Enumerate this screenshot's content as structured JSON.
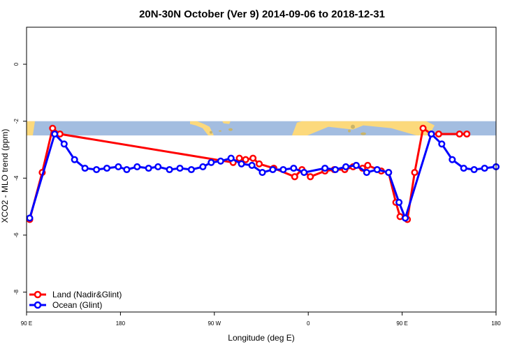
{
  "chart_data": {
    "type": "line",
    "title": "20N-30N October (Ver 9)   2014-09-06 to 2018-12-31",
    "xlabel": "Longitude (deg E)",
    "ylabel": "XCO2 - MLO trend (ppm)",
    "xlim": [
      90,
      540
    ],
    "ylim": [
      -8.7,
      1.3
    ],
    "x_ticks": [
      {
        "value": 90,
        "label": "90 E"
      },
      {
        "value": 180,
        "label": "180"
      },
      {
        "value": 270,
        "label": "90 W"
      },
      {
        "value": 360,
        "label": "0"
      },
      {
        "value": 450,
        "label": "90 E"
      },
      {
        "value": 540,
        "label": "180"
      }
    ],
    "y_ticks": [
      {
        "value": 0,
        "label": "0"
      },
      {
        "value": -2,
        "label": "-2"
      },
      {
        "value": -4,
        "label": "-4"
      },
      {
        "value": -6,
        "label": "-6"
      },
      {
        "value": -8,
        "label": "-8"
      }
    ],
    "grid": false,
    "legend_position": "bottom-left",
    "map_band": {
      "y_top": -2.0,
      "y_bottom": -2.5,
      "ocean_color": "#a3bde0",
      "land_color": "#fcd97c"
    },
    "series": [
      {
        "name": "Land (Nadir&Glint)",
        "color": "#ff0000",
        "x": [
          93,
          105,
          115,
          122,
          288,
          294,
          300,
          307,
          313,
          327,
          347,
          354,
          362,
          376,
          385,
          395,
          403,
          412,
          417,
          430,
          437,
          444,
          448,
          455,
          462,
          470,
          478,
          485,
          505,
          512
        ],
        "y": [
          -5.45,
          -3.8,
          -2.25,
          -2.45,
          -3.45,
          -3.3,
          -3.35,
          -3.3,
          -3.5,
          -3.65,
          -3.95,
          -3.7,
          -3.95,
          -3.75,
          -3.7,
          -3.7,
          -3.6,
          -3.65,
          -3.55,
          -3.75,
          -3.8,
          -4.85,
          -5.35,
          -5.45,
          -3.8,
          -2.25,
          -2.45,
          -2.45,
          -2.45,
          -2.45
        ]
      },
      {
        "name": "Ocean (Glint)",
        "color": "#0000ff",
        "x": [
          93,
          117,
          126,
          136,
          146,
          157,
          167,
          178,
          186,
          196,
          207,
          216,
          227,
          237,
          248,
          259,
          267,
          276,
          286,
          296,
          306,
          316,
          326,
          336,
          346,
          356,
          376,
          386,
          396,
          406,
          416,
          426,
          437,
          447,
          453,
          478,
          488,
          498,
          509,
          519,
          529,
          540
        ],
        "y": [
          -5.4,
          -2.45,
          -2.8,
          -3.35,
          -3.65,
          -3.7,
          -3.65,
          -3.6,
          -3.7,
          -3.6,
          -3.65,
          -3.6,
          -3.7,
          -3.65,
          -3.7,
          -3.6,
          -3.45,
          -3.4,
          -3.3,
          -3.5,
          -3.55,
          -3.8,
          -3.7,
          -3.7,
          -3.65,
          -3.8,
          -3.65,
          -3.7,
          -3.6,
          -3.55,
          -3.8,
          -3.7,
          -3.8,
          -4.85,
          -5.4,
          -2.45,
          -2.8,
          -3.35,
          -3.65,
          -3.7,
          -3.65,
          -3.6
        ]
      }
    ]
  }
}
